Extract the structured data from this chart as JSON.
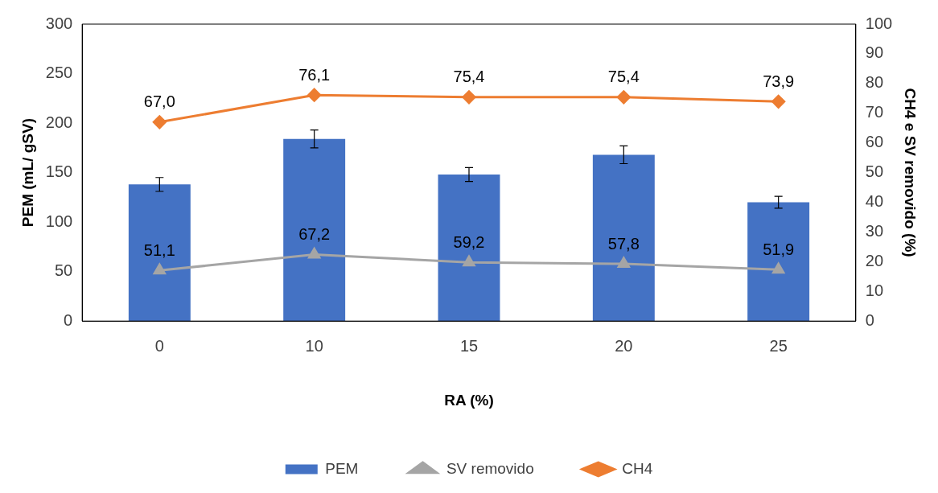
{
  "chart_data": {
    "type": "bar",
    "xlabel": "RA (%)",
    "ylabel": "PEM (mL/ gSV)",
    "y2label": "CH4 e SV removido (%)",
    "categories": [
      "0",
      "10",
      "15",
      "20",
      "25"
    ],
    "series": [
      {
        "name": "PEM",
        "color": "#4472c4",
        "values": [
          138,
          184,
          148,
          168,
          120
        ],
        "errors": [
          7,
          9,
          7,
          9,
          6
        ]
      },
      {
        "name": "SV removido",
        "type": "line",
        "color": "#a5a5a5",
        "marker": "triangle",
        "values": [
          51.1,
          67.2,
          59.2,
          57.8,
          51.9
        ],
        "value_labels": [
          "51,1",
          "67,2",
          "59,2",
          "57,8",
          "51,9"
        ]
      },
      {
        "name": "CH4",
        "type": "line",
        "axis": "y2",
        "color": "#ed7d31",
        "marker": "diamond",
        "values": [
          67.0,
          76.1,
          75.4,
          75.4,
          73.9
        ],
        "value_labels": [
          "67,0",
          "76,1",
          "75,4",
          "75,4",
          "73,9"
        ]
      }
    ],
    "ylim": [
      0,
      300
    ],
    "yticks": [
      0,
      50,
      100,
      150,
      200,
      250,
      300
    ],
    "y2lim": [
      0,
      100
    ],
    "y2ticks": [
      0,
      10,
      20,
      30,
      40,
      50,
      60,
      70,
      80,
      90,
      100
    ],
    "grid": false,
    "legend": "bottom"
  }
}
